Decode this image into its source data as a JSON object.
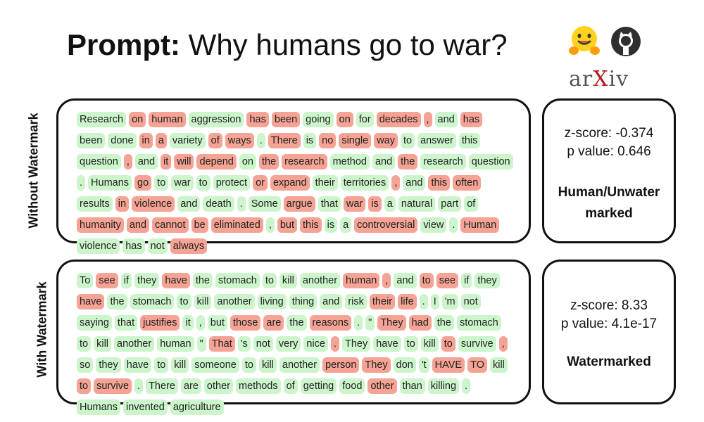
{
  "title": {
    "prefix": "Prompt:",
    "text": "Why humans go to war?"
  },
  "logos": {
    "hf": "hugging-face-icon",
    "github": "github-icon",
    "arxiv_text": [
      "ar",
      "X",
      "iv"
    ]
  },
  "without": {
    "label": "Without Watermark",
    "zscore": "z-score: -0.374",
    "pvalue": "p value: 0.646",
    "verdict_lines": [
      "Human/Unwater",
      "marked"
    ],
    "tokens": [
      [
        "Research",
        "g"
      ],
      [
        "on",
        "r"
      ],
      [
        "human",
        "r"
      ],
      [
        "aggression",
        "g"
      ],
      [
        "has",
        "r"
      ],
      [
        "been",
        "r"
      ],
      [
        "going",
        "g"
      ],
      [
        "on",
        "r"
      ],
      [
        "for",
        "g"
      ],
      [
        "decades",
        "r"
      ],
      [
        ",",
        "r"
      ],
      [
        "and",
        "g"
      ],
      [
        "has",
        "r"
      ],
      [
        "been",
        "g"
      ],
      [
        "done",
        "g"
      ],
      [
        "in",
        "r"
      ],
      [
        "a",
        "r"
      ],
      [
        "variety",
        "g"
      ],
      [
        "of",
        "r"
      ],
      [
        "ways",
        "r"
      ],
      [
        ".",
        "g"
      ],
      [
        "There",
        "r"
      ],
      [
        "is",
        "g"
      ],
      [
        "no",
        "r"
      ],
      [
        "single",
        "r"
      ],
      [
        "way",
        "r"
      ],
      [
        "to",
        "g"
      ],
      [
        "answer",
        "g"
      ],
      [
        "this",
        "g"
      ],
      [
        "question",
        "g"
      ],
      [
        ",",
        "r"
      ],
      [
        "and",
        "g"
      ],
      [
        "it",
        "r"
      ],
      [
        "will",
        "r"
      ],
      [
        "depend",
        "r"
      ],
      [
        "on",
        "g"
      ],
      [
        "the",
        "r"
      ],
      [
        "research",
        "r"
      ],
      [
        "method",
        "g"
      ],
      [
        "and",
        "g"
      ],
      [
        "the",
        "r"
      ],
      [
        "research",
        "g"
      ],
      [
        "question",
        "g"
      ],
      [
        ".",
        "g"
      ],
      [
        "Humans",
        "g"
      ],
      [
        "go",
        "r"
      ],
      [
        "to",
        "g"
      ],
      [
        "war",
        "g"
      ],
      [
        "to",
        "g"
      ],
      [
        "protect",
        "g"
      ],
      [
        "or",
        "r"
      ],
      [
        "expand",
        "r"
      ],
      [
        "their",
        "g"
      ],
      [
        "territories",
        "g"
      ],
      [
        ",",
        "r"
      ],
      [
        "and",
        "g"
      ],
      [
        "this",
        "r"
      ],
      [
        "often",
        "r"
      ],
      [
        "results",
        "g"
      ],
      [
        "in",
        "r"
      ],
      [
        "violence",
        "r"
      ],
      [
        "and",
        "g"
      ],
      [
        "death",
        "g"
      ],
      [
        ".",
        "g"
      ],
      [
        "Some",
        "g"
      ],
      [
        "argue",
        "r"
      ],
      [
        "that",
        "g"
      ],
      [
        "war",
        "r"
      ],
      [
        "is",
        "r"
      ],
      [
        "a",
        "g"
      ],
      [
        "natural",
        "g"
      ],
      [
        "part",
        "g"
      ],
      [
        "of",
        "g"
      ],
      [
        "humanity",
        "r"
      ],
      [
        "and",
        "r"
      ],
      [
        "cannot",
        "r"
      ],
      [
        "be",
        "r"
      ],
      [
        "eliminated",
        "r"
      ],
      [
        ",",
        "g"
      ],
      [
        "but",
        "r"
      ],
      [
        "this",
        "r"
      ],
      [
        "is",
        "g"
      ],
      [
        "a",
        "g"
      ],
      [
        "controversial",
        "r"
      ],
      [
        "view",
        "g"
      ],
      [
        ".",
        "g"
      ],
      [
        "Human",
        "r"
      ],
      [
        "violence",
        "g"
      ],
      [
        "has",
        "g"
      ],
      [
        "not",
        "g"
      ],
      [
        "always",
        "r"
      ]
    ]
  },
  "with": {
    "label": "With Watermark",
    "zscore": "z-score: 8.33",
    "pvalue": "p value: 4.1e-17",
    "verdict_lines": [
      "Watermarked"
    ],
    "tokens": [
      [
        "To",
        "g"
      ],
      [
        "see",
        "r"
      ],
      [
        "if",
        "g"
      ],
      [
        "they",
        "g"
      ],
      [
        "have",
        "r"
      ],
      [
        "the",
        "g"
      ],
      [
        "stomach",
        "g"
      ],
      [
        "to",
        "g"
      ],
      [
        "kill",
        "g"
      ],
      [
        "another",
        "g"
      ],
      [
        "human",
        "r"
      ],
      [
        ",",
        "r"
      ],
      [
        "and",
        "g"
      ],
      [
        "to",
        "r"
      ],
      [
        "see",
        "r"
      ],
      [
        "if",
        "g"
      ],
      [
        "they",
        "g"
      ],
      [
        "have",
        "r"
      ],
      [
        "the",
        "g"
      ],
      [
        "stomach",
        "g"
      ],
      [
        "to",
        "g"
      ],
      [
        "kill",
        "g"
      ],
      [
        "another",
        "g"
      ],
      [
        "living",
        "g"
      ],
      [
        "thing",
        "g"
      ],
      [
        "and",
        "g"
      ],
      [
        "risk",
        "g"
      ],
      [
        "their",
        "r"
      ],
      [
        "life",
        "r"
      ],
      [
        ".",
        "g"
      ],
      [
        "I",
        "g"
      ],
      [
        "'m",
        "g"
      ],
      [
        "not",
        "g"
      ],
      [
        "saying",
        "g"
      ],
      [
        "that",
        "g"
      ],
      [
        "justifies",
        "r"
      ],
      [
        "it",
        "g"
      ],
      [
        ",",
        "g"
      ],
      [
        "but",
        "g"
      ],
      [
        "those",
        "r"
      ],
      [
        "are",
        "r"
      ],
      [
        "the",
        "g"
      ],
      [
        "reasons",
        "r"
      ],
      [
        ".",
        "g"
      ],
      [
        "\"",
        "g"
      ],
      [
        "They",
        "r"
      ],
      [
        "had",
        "r"
      ],
      [
        "the",
        "g"
      ],
      [
        "stomach",
        "g"
      ],
      [
        "to",
        "g"
      ],
      [
        "kill",
        "g"
      ],
      [
        "another",
        "g"
      ],
      [
        "human",
        "g"
      ],
      [
        "\"",
        "g"
      ],
      [
        "That",
        "r"
      ],
      [
        "'s",
        "g"
      ],
      [
        "not",
        "g"
      ],
      [
        "very",
        "g"
      ],
      [
        "nice",
        "g"
      ],
      [
        ".",
        "r"
      ],
      [
        "They",
        "g"
      ],
      [
        "have",
        "g"
      ],
      [
        "to",
        "g"
      ],
      [
        "kill",
        "g"
      ],
      [
        "to",
        "r"
      ],
      [
        "survive",
        "g"
      ],
      [
        ",",
        "r"
      ],
      [
        "so",
        "g"
      ],
      [
        "they",
        "g"
      ],
      [
        "have",
        "g"
      ],
      [
        "to",
        "g"
      ],
      [
        "kill",
        "g"
      ],
      [
        "someone",
        "g"
      ],
      [
        "to",
        "g"
      ],
      [
        "kill",
        "g"
      ],
      [
        "another",
        "g"
      ],
      [
        "person",
        "r"
      ],
      [
        "They",
        "r"
      ],
      [
        "don",
        "g"
      ],
      [
        "'t",
        "g"
      ],
      [
        "HAVE",
        "r"
      ],
      [
        "TO",
        "r"
      ],
      [
        "kill",
        "g"
      ],
      [
        "to",
        "r"
      ],
      [
        "survive",
        "r"
      ],
      [
        ".",
        "g"
      ],
      [
        "There",
        "g"
      ],
      [
        "are",
        "g"
      ],
      [
        "other",
        "g"
      ],
      [
        "methods",
        "g"
      ],
      [
        "of",
        "g"
      ],
      [
        "getting",
        "g"
      ],
      [
        "food",
        "g"
      ],
      [
        "other",
        "r"
      ],
      [
        "than",
        "g"
      ],
      [
        "killing",
        "g"
      ],
      [
        ".",
        "g"
      ],
      [
        "Humans",
        "g"
      ],
      [
        "invented",
        "g"
      ],
      [
        "agriculture",
        "g"
      ]
    ]
  }
}
